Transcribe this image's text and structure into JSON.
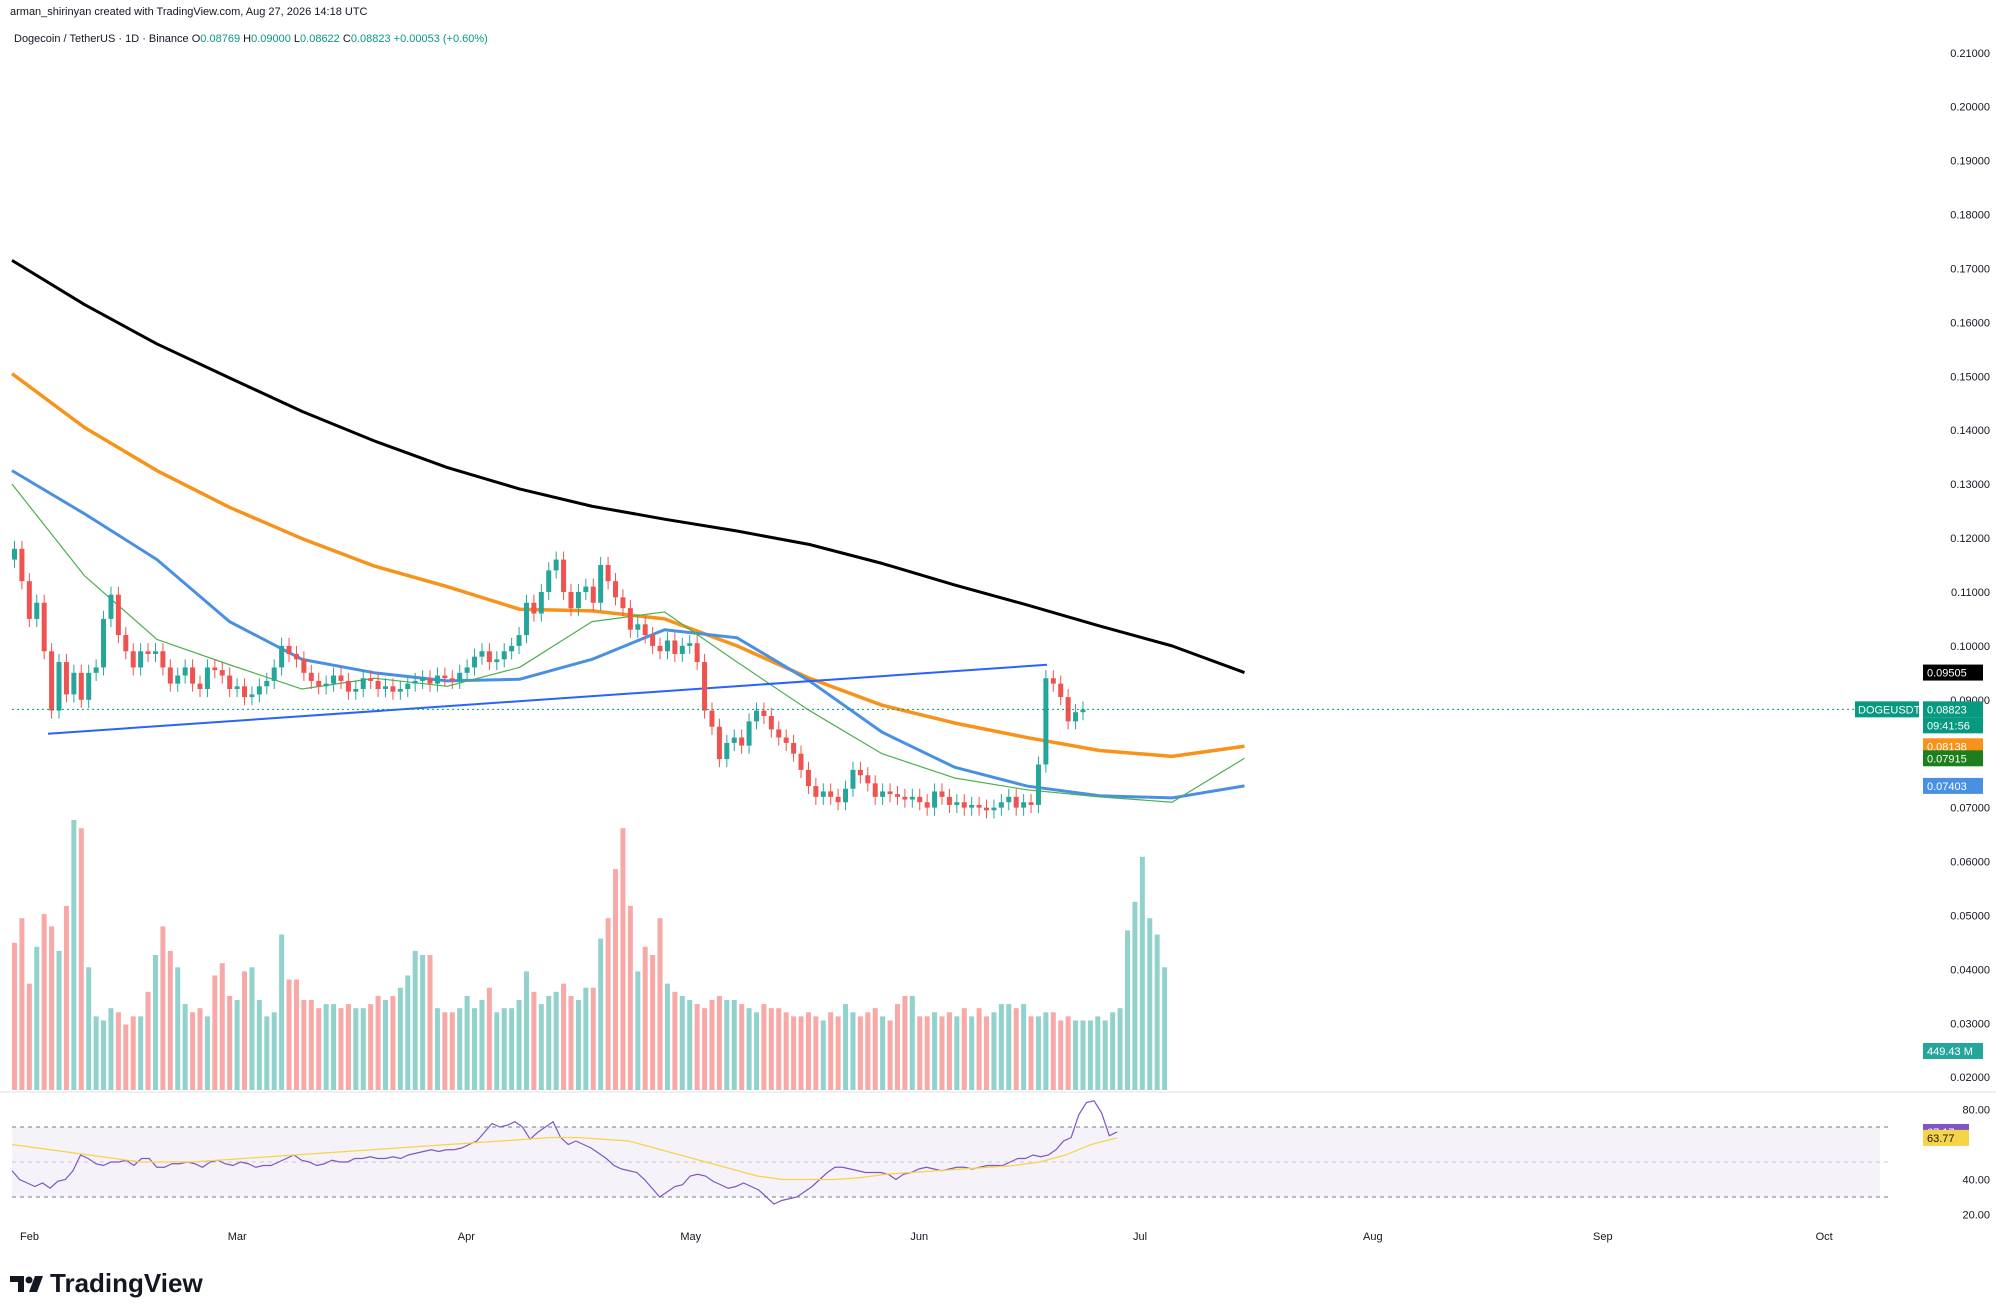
{
  "header": {
    "author_line": "arman_shirinyan created with TradingView.com, Aug 27, 2026 14:18 UTC"
  },
  "symbol": {
    "name": "Dogecoin / TetherUS · 1D · Binance",
    "open_label": "O",
    "open": "0.08769",
    "high_label": "H",
    "high": "0.09000",
    "low_label": "L",
    "low": "0.08622",
    "close_label": "C",
    "close": "0.08823",
    "change": "+0.00053 (+0.60%)"
  },
  "brand": {
    "name": "TradingView"
  },
  "colors": {
    "up": "#26a69a",
    "down": "#ef5350",
    "ma200": "#000000",
    "ma100": "#f7931a",
    "ma50": "#4a90e2",
    "ma20": "#4caf50",
    "trendline": "#2962ff",
    "rsi": "#7e57c2",
    "rsi_ma": "#f5d547"
  },
  "price_labels": [
    {
      "text": "0.09505",
      "bg": "#000000",
      "price": 0.09505
    },
    {
      "text": "DOGEUSDT",
      "bg": "#089981",
      "price": 0.08823,
      "side": "left"
    },
    {
      "text": "0.08823",
      "bg": "#089981",
      "price": 0.08823
    },
    {
      "text": "09:41:56",
      "bg": "#089981",
      "price": 0.08823,
      "sub": true
    },
    {
      "text": "0.08138",
      "bg": "#f7931a",
      "price": 0.08138
    },
    {
      "text": "0.07915",
      "bg": "#1b7f1b",
      "price": 0.07915
    },
    {
      "text": "0.07403",
      "bg": "#4a90e2",
      "price": 0.07403
    }
  ],
  "volume_label": {
    "text": "449.43 M",
    "bg": "#26a69a"
  },
  "rsi_labels": [
    {
      "text": "67.17",
      "bg": "#7e57c2",
      "value": 67.17
    },
    {
      "text": "63.77",
      "bg": "#f5d547",
      "value": 63.77
    }
  ],
  "chart_data": {
    "type": "candlestick",
    "title": "Dogecoin / TetherUS · 1D · Binance",
    "y_ticks": [
      "0.21000",
      "0.20000",
      "0.19000",
      "0.18000",
      "0.17000",
      "0.16000",
      "0.15000",
      "0.14000",
      "0.13000",
      "0.12000",
      "0.11000",
      "0.10000",
      "0.09000",
      "0.07000",
      "0.06000",
      "0.05000",
      "0.04000",
      "0.03000",
      "0.02000"
    ],
    "ylim": [
      0.018,
      0.212
    ],
    "x_ticks": [
      "Feb",
      "Mar",
      "Apr",
      "May",
      "Jun",
      "Jul",
      "Aug",
      "Sep",
      "Oct"
    ],
    "rsi_ticks": [
      "80.00",
      "40.00",
      "20.00"
    ],
    "rsi_bands": [
      70,
      30
    ],
    "ma200": [
      [
        0,
        0.1715
      ],
      [
        10,
        0.1633
      ],
      [
        20,
        0.156
      ],
      [
        30,
        0.1497
      ],
      [
        40,
        0.1435
      ],
      [
        50,
        0.138
      ],
      [
        60,
        0.1331
      ],
      [
        70,
        0.1291
      ],
      [
        80,
        0.1259
      ],
      [
        90,
        0.1235
      ],
      [
        100,
        0.1213
      ],
      [
        110,
        0.1188
      ],
      [
        120,
        0.1153
      ],
      [
        130,
        0.1113
      ],
      [
        140,
        0.1076
      ],
      [
        150,
        0.1037
      ],
      [
        160,
        0.1
      ],
      [
        170,
        0.09505
      ]
    ],
    "ma100": [
      [
        0,
        0.1505
      ],
      [
        10,
        0.1405
      ],
      [
        20,
        0.1325
      ],
      [
        30,
        0.1257
      ],
      [
        40,
        0.1199
      ],
      [
        50,
        0.1148
      ],
      [
        60,
        0.111
      ],
      [
        70,
        0.1068
      ],
      [
        80,
        0.1065
      ],
      [
        90,
        0.105
      ],
      [
        100,
        0.1
      ],
      [
        110,
        0.094
      ],
      [
        120,
        0.089
      ],
      [
        130,
        0.0857
      ],
      [
        140,
        0.083
      ],
      [
        150,
        0.0806
      ],
      [
        160,
        0.0795
      ],
      [
        170,
        0.08138
      ]
    ],
    "ma50": [
      [
        0,
        0.1325
      ],
      [
        10,
        0.1245
      ],
      [
        20,
        0.116
      ],
      [
        30,
        0.1045
      ],
      [
        40,
        0.0975
      ],
      [
        50,
        0.095
      ],
      [
        60,
        0.0935
      ],
      [
        70,
        0.0938
      ],
      [
        80,
        0.0975
      ],
      [
        90,
        0.103
      ],
      [
        100,
        0.1015
      ],
      [
        110,
        0.0935
      ],
      [
        120,
        0.084
      ],
      [
        130,
        0.0775
      ],
      [
        140,
        0.074
      ],
      [
        150,
        0.0722
      ],
      [
        160,
        0.0718
      ],
      [
        170,
        0.07403
      ]
    ],
    "ma20": [
      [
        0,
        0.13
      ],
      [
        10,
        0.113
      ],
      [
        20,
        0.1012
      ],
      [
        30,
        0.0965
      ],
      [
        40,
        0.092
      ],
      [
        50,
        0.094
      ],
      [
        60,
        0.0925
      ],
      [
        70,
        0.096
      ],
      [
        80,
        0.1045
      ],
      [
        90,
        0.1063
      ],
      [
        100,
        0.097
      ],
      [
        110,
        0.088
      ],
      [
        120,
        0.08
      ],
      [
        130,
        0.0755
      ],
      [
        140,
        0.0733
      ],
      [
        150,
        0.072
      ],
      [
        160,
        0.071
      ],
      [
        170,
        0.07915
      ]
    ],
    "trendline": [
      [
        4,
        0.0837
      ],
      [
        120,
        0.0965
      ]
    ],
    "candles_closes": [
      0.118,
      0.112,
      0.105,
      0.108,
      0.099,
      0.088,
      0.097,
      0.091,
      0.095,
      0.09,
      0.095,
      0.096,
      0.105,
      0.1095,
      0.102,
      0.099,
      0.096,
      0.099,
      0.0985,
      0.099,
      0.096,
      0.093,
      0.0945,
      0.096,
      0.093,
      0.092,
      0.096,
      0.0955,
      0.0945,
      0.092,
      0.0925,
      0.0905,
      0.091,
      0.0925,
      0.0935,
      0.096,
      0.1,
      0.0985,
      0.0975,
      0.095,
      0.0935,
      0.0925,
      0.093,
      0.0945,
      0.0935,
      0.0915,
      0.092,
      0.094,
      0.0935,
      0.092,
      0.0925,
      0.0915,
      0.092,
      0.093,
      0.0935,
      0.094,
      0.093,
      0.0945,
      0.094,
      0.0935,
      0.095,
      0.096,
      0.098,
      0.099,
      0.097,
      0.0975,
      0.099,
      0.1,
      0.102,
      0.108,
      0.106,
      0.11,
      0.114,
      0.116,
      0.11,
      0.107,
      0.11,
      0.111,
      0.108,
      0.115,
      0.112,
      0.109,
      0.107,
      0.103,
      0.104,
      0.102,
      0.1,
      0.099,
      0.101,
      0.0985,
      0.1,
      0.1005,
      0.097,
      0.088,
      0.085,
      0.079,
      0.082,
      0.083,
      0.0815,
      0.086,
      0.088,
      0.087,
      0.0845,
      0.083,
      0.082,
      0.08,
      0.077,
      0.074,
      0.072,
      0.073,
      0.072,
      0.071,
      0.0735,
      0.077,
      0.076,
      0.0745,
      0.072,
      0.073,
      0.0725,
      0.072,
      0.0715,
      0.072,
      0.071,
      0.07,
      0.073,
      0.072,
      0.0705,
      0.071,
      0.07,
      0.0705,
      0.07,
      0.0695,
      0.07,
      0.071,
      0.072,
      0.07,
      0.071,
      0.0705,
      0.078,
      0.094,
      0.093,
      0.0905,
      0.086,
      0.0877,
      0.0882
    ],
    "volumes": [
      36,
      42,
      26,
      35,
      43,
      40,
      34,
      45,
      66,
      64,
      30,
      18,
      17,
      20,
      19,
      16,
      18,
      18,
      24,
      33,
      40,
      34,
      30,
      21,
      19,
      20,
      18,
      28,
      31,
      23,
      22,
      29,
      30,
      22,
      18,
      19,
      38,
      27,
      27,
      22,
      22,
      20,
      21,
      21,
      20,
      21,
      20,
      20,
      21,
      23,
      22,
      23,
      25,
      28,
      34,
      33,
      33,
      20,
      19,
      19,
      20,
      23,
      20,
      22,
      25,
      19,
      20,
      20,
      22,
      29,
      24,
      21,
      23,
      24,
      26,
      23,
      22,
      25,
      25,
      37,
      42,
      54,
      64,
      45,
      29,
      35,
      33,
      42,
      26,
      24,
      23,
      22,
      21,
      20,
      22,
      23,
      22,
      22,
      21,
      20,
      19,
      21,
      20,
      20,
      19,
      18,
      18,
      19,
      18,
      17,
      19,
      18,
      21,
      19,
      18,
      19,
      20,
      18,
      17,
      21,
      23,
      23,
      18,
      18,
      19,
      18,
      19,
      18,
      20,
      18,
      20,
      18,
      19,
      21,
      21,
      20,
      21,
      18,
      18,
      19,
      19,
      17,
      18,
      17,
      17,
      17,
      18,
      17,
      19,
      20,
      39,
      46,
      57,
      42,
      38,
      30
    ],
    "volumes_unit": "M",
    "rsi_values": [
      45,
      40,
      38,
      36,
      38,
      35,
      39,
      40,
      45,
      54,
      52,
      49,
      48,
      50,
      50,
      51,
      48,
      52,
      52,
      47,
      47,
      49,
      49,
      50,
      49,
      47,
      50,
      51,
      49,
      48,
      50,
      49,
      47,
      48,
      48,
      50,
      52,
      54,
      51,
      50,
      48,
      49,
      51,
      50,
      50,
      52,
      52,
      53,
      52,
      52,
      53,
      52,
      54,
      55,
      56,
      57,
      56,
      57,
      57,
      58,
      60,
      62,
      67,
      72,
      70,
      71,
      73,
      70,
      63,
      67,
      70,
      73,
      64,
      60,
      62,
      60,
      58,
      55,
      52,
      48,
      46,
      45,
      44,
      40,
      35,
      30,
      33,
      36,
      37,
      42,
      43,
      42,
      39,
      37,
      35,
      36,
      38,
      36,
      34,
      30,
      26,
      28,
      29,
      30,
      33,
      36,
      40,
      44,
      47,
      47,
      46,
      45,
      44,
      44,
      44,
      43,
      40,
      43,
      44,
      46,
      47,
      46,
      45,
      46,
      47,
      47,
      46,
      47,
      48,
      48,
      48,
      50,
      52,
      52,
      54,
      53,
      54,
      57,
      62,
      64,
      77,
      84,
      85,
      78,
      65,
      67.17
    ],
    "rsi_ma_values": [
      60,
      58,
      56,
      54,
      52,
      50,
      50,
      50,
      51,
      52,
      53,
      54,
      55,
      56,
      57,
      58,
      59,
      60,
      61,
      62,
      63,
      64,
      64,
      63,
      62,
      58,
      54,
      50,
      46,
      42,
      40,
      40,
      40,
      41,
      43,
      44,
      45,
      46,
      47,
      48,
      50,
      54,
      60,
      63.77
    ]
  }
}
